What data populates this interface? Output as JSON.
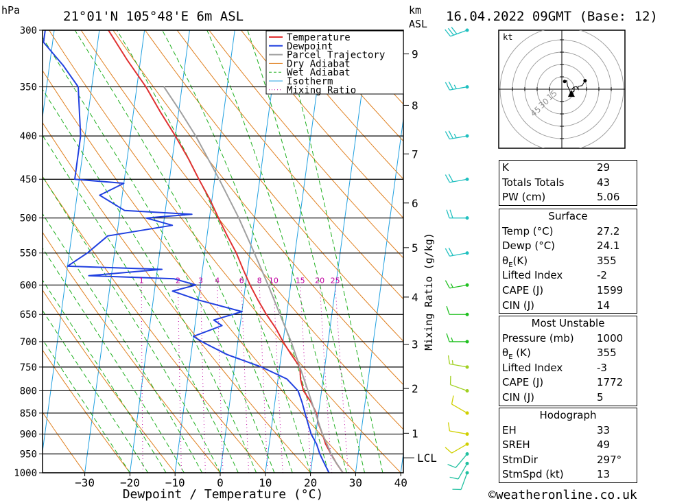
{
  "header": {
    "hpa_label": "hPa",
    "location": "21°01'N 105°48'E 6m ASL",
    "km_label": "km",
    "asl_label": "ASL",
    "datetime": "16.04.2022 09GMT (Base: 12)"
  },
  "footer": {
    "copyright": "©weatheronline.co.uk"
  },
  "colors": {
    "temperature": "#e03030",
    "dewpoint": "#2040e0",
    "parcel": "#a0a0a0",
    "dry_adiabat": "#e08020",
    "wet_adiabat": "#20b020",
    "isotherm": "#20a0e0",
    "mixing_ratio": "#c000a0"
  },
  "chart_data": {
    "type": "line",
    "subtype": "skew-t log-p",
    "xlabel": "Dewpoint / Temperature (°C)",
    "ylabel_left": "hPa",
    "ylabel_right": "Mixing Ratio (g/kg)",
    "x_ticks": [
      -30,
      -20,
      -10,
      0,
      10,
      20,
      30,
      40
    ],
    "pressure_ticks": [
      300,
      350,
      400,
      450,
      500,
      550,
      600,
      650,
      700,
      750,
      800,
      850,
      900,
      950,
      1000
    ],
    "ylim_hpa": [
      1000,
      300
    ],
    "km_ticks": [
      {
        "km": 1,
        "label": "1",
        "p": 898
      },
      {
        "km": 2,
        "label": "2",
        "p": 795
      },
      {
        "km": 3,
        "label": "3",
        "p": 705
      },
      {
        "km": 4,
        "label": "4",
        "p": 620
      },
      {
        "km": 5,
        "label": "5",
        "p": 542
      },
      {
        "km": 6,
        "label": "6",
        "p": 480
      },
      {
        "km": 7,
        "label": "7",
        "p": 420
      },
      {
        "km": 8,
        "label": "8",
        "p": 368
      },
      {
        "km": 9,
        "label": "9",
        "p": 320
      }
    ],
    "lcl": {
      "label": "LCL",
      "p": 960
    },
    "mixing_ratio_labels": [
      "1",
      "2",
      "3",
      "4",
      "6",
      "8",
      "10",
      "15",
      "20",
      "25"
    ],
    "legend": {
      "placement": "top-center",
      "entries": [
        "Temperature",
        "Dewpoint",
        "Parcel Trajectory",
        "Dry Adiabat",
        "Wet Adiabat",
        "Isotherm",
        "Mixing Ratio"
      ]
    },
    "series": [
      {
        "name": "Temperature",
        "points": [
          [
            1000,
            27.2
          ],
          [
            975,
            25.5
          ],
          [
            950,
            24.0
          ],
          [
            925,
            22.5
          ],
          [
            900,
            21.5
          ],
          [
            875,
            20.3
          ],
          [
            850,
            19.5
          ],
          [
            825,
            18.0
          ],
          [
            800,
            16.0
          ],
          [
            775,
            15.0
          ],
          [
            750,
            14.5
          ],
          [
            725,
            12.2
          ],
          [
            700,
            10.0
          ],
          [
            675,
            8.0
          ],
          [
            650,
            5.5
          ],
          [
            625,
            3.2
          ],
          [
            600,
            1.0
          ],
          [
            575,
            -1.0
          ],
          [
            550,
            -3.0
          ],
          [
            525,
            -5.5
          ],
          [
            500,
            -8.0
          ],
          [
            475,
            -10.5
          ],
          [
            450,
            -13.5
          ],
          [
            425,
            -16.5
          ],
          [
            400,
            -20.0
          ],
          [
            375,
            -24.0
          ],
          [
            350,
            -28.0
          ],
          [
            325,
            -33.0
          ],
          [
            300,
            -38.0
          ]
        ]
      },
      {
        "name": "Dewpoint",
        "points": [
          [
            1000,
            24.1
          ],
          [
            975,
            22.8
          ],
          [
            950,
            21.5
          ],
          [
            925,
            20.5
          ],
          [
            900,
            19.0
          ],
          [
            875,
            18.0
          ],
          [
            850,
            17.0
          ],
          [
            825,
            16.0
          ],
          [
            800,
            14.8
          ],
          [
            775,
            12.0
          ],
          [
            750,
            6.0
          ],
          [
            725,
            -2.0
          ],
          [
            700,
            -8.0
          ],
          [
            690,
            -10.0
          ],
          [
            670,
            -4.0
          ],
          [
            660,
            -6.0
          ],
          [
            645,
            0.0
          ],
          [
            625,
            -10.0
          ],
          [
            610,
            -16.0
          ],
          [
            600,
            -11.0
          ],
          [
            590,
            -16.0
          ],
          [
            585,
            -35.0
          ],
          [
            575,
            -19.0
          ],
          [
            570,
            -40.0
          ],
          [
            550,
            -36.0
          ],
          [
            525,
            -32.0
          ],
          [
            510,
            -18.0
          ],
          [
            500,
            -24.0
          ],
          [
            495,
            -14.0
          ],
          [
            490,
            -29.0
          ],
          [
            470,
            -35.0
          ],
          [
            455,
            -30.0
          ],
          [
            450,
            -41.0
          ],
          [
            400,
            -41.0
          ],
          [
            350,
            -43.0
          ],
          [
            330,
            -47.0
          ],
          [
            310,
            -52.0
          ],
          [
            300,
            -52.0
          ]
        ]
      },
      {
        "name": "Parcel Trajectory",
        "points": [
          [
            1000,
            27.2
          ],
          [
            960,
            24.5
          ],
          [
            925,
            22.8
          ],
          [
            900,
            21.5
          ],
          [
            850,
            19.3
          ],
          [
            800,
            17.0
          ],
          [
            750,
            14.5
          ],
          [
            700,
            11.8
          ],
          [
            650,
            8.5
          ],
          [
            600,
            5.0
          ],
          [
            550,
            1.0
          ],
          [
            500,
            -3.5
          ],
          [
            450,
            -9.0
          ],
          [
            400,
            -15.5
          ],
          [
            375,
            -19.5
          ],
          [
            350,
            -24.0
          ]
        ]
      }
    ],
    "hodograph": {
      "unit_label": "kt",
      "ring_labels": [
        "15",
        "30",
        "45"
      ]
    },
    "wind_profile": [
      {
        "p": 1000,
        "dir": 200,
        "spd": 10
      },
      {
        "p": 975,
        "dir": 210,
        "spd": 12
      },
      {
        "p": 950,
        "dir": 220,
        "spd": 10
      },
      {
        "p": 925,
        "dir": 240,
        "spd": 8
      },
      {
        "p": 900,
        "dir": 280,
        "spd": 10
      },
      {
        "p": 850,
        "dir": 300,
        "spd": 12
      },
      {
        "p": 800,
        "dir": 290,
        "spd": 12
      },
      {
        "p": 750,
        "dir": 280,
        "spd": 15
      },
      {
        "p": 700,
        "dir": 270,
        "spd": 15
      },
      {
        "p": 650,
        "dir": 270,
        "spd": 12
      },
      {
        "p": 600,
        "dir": 260,
        "spd": 15
      },
      {
        "p": 550,
        "dir": 260,
        "spd": 18
      },
      {
        "p": 500,
        "dir": 270,
        "spd": 20
      },
      {
        "p": 450,
        "dir": 260,
        "spd": 20
      },
      {
        "p": 400,
        "dir": 260,
        "spd": 25
      },
      {
        "p": 350,
        "dir": 260,
        "spd": 25
      },
      {
        "p": 300,
        "dir": 250,
        "spd": 30
      }
    ]
  },
  "indices": {
    "k": {
      "label": "K",
      "value": "29"
    },
    "totals": {
      "label": "Totals Totals",
      "value": "43"
    },
    "pw": {
      "label": "PW (cm)",
      "value": "5.06"
    }
  },
  "surface": {
    "title": "Surface",
    "temp": {
      "label": "Temp (°C)",
      "value": "27.2"
    },
    "dewp": {
      "label": "Dewp (°C)",
      "value": "24.1"
    },
    "theta": {
      "label_main": "θ",
      "label_sub": "E",
      "label_rest": "(K)",
      "value": "355"
    },
    "li": {
      "label": "Lifted Index",
      "value": "-2"
    },
    "cape": {
      "label": "CAPE (J)",
      "value": "1599"
    },
    "cin": {
      "label": "CIN (J)",
      "value": "14"
    }
  },
  "most_unstable": {
    "title": "Most Unstable",
    "pressure": {
      "label": "Pressure (mb)",
      "value": "1000"
    },
    "theta": {
      "label_main": "θ",
      "label_sub": "E",
      "label_rest": " (K)",
      "value": "355"
    },
    "li": {
      "label": "Lifted Index",
      "value": "-3"
    },
    "cape": {
      "label": "CAPE (J)",
      "value": "1772"
    },
    "cin": {
      "label": "CIN (J)",
      "value": "5"
    }
  },
  "hodograph_table": {
    "title": "Hodograph",
    "eh": {
      "label": "EH",
      "value": "33"
    },
    "sreh": {
      "label": "SREH",
      "value": "49"
    },
    "stmdir": {
      "label": "StmDir",
      "value": "297°"
    },
    "stmspd": {
      "label": "StmSpd (kt)",
      "value": "13"
    }
  }
}
